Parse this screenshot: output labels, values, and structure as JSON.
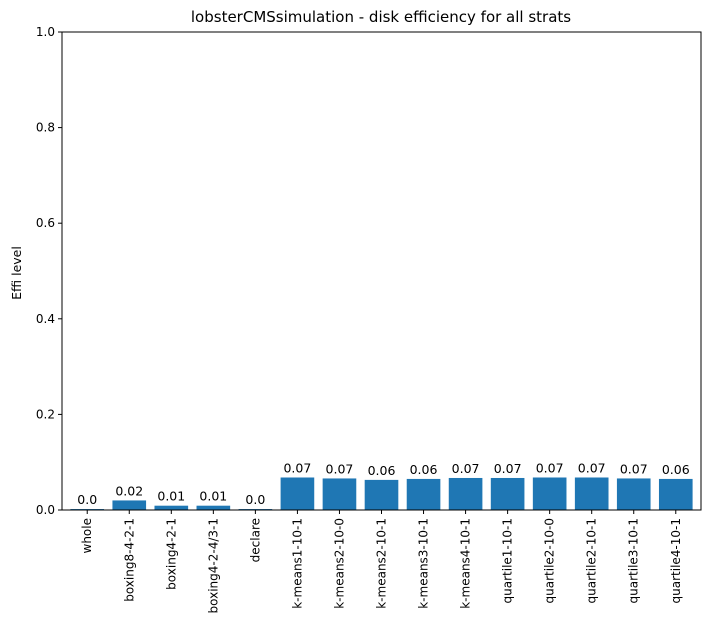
{
  "chart_data": {
    "type": "bar",
    "title": "lobsterCMSsimulation - disk efficiency for all strats",
    "xlabel": "",
    "ylabel": "Effi level",
    "ylim": [
      0,
      1.0
    ],
    "yticks": [
      "0.0",
      "0.2",
      "0.4",
      "0.6",
      "0.8",
      "1.0"
    ],
    "categories": [
      "whole",
      "boxing8-4-2-1",
      "boxing4-2-1",
      "boxing4-2-4/3-1",
      "declare",
      "k-means1-10-1",
      "k-means2-10-0",
      "k-means2-10-1",
      "k-means3-10-1",
      "k-means4-10-1",
      "quartile1-10-1",
      "quartile2-10-0",
      "quartile2-10-1",
      "quartile3-10-1",
      "quartile4-10-1"
    ],
    "values": [
      0.002,
      0.02,
      0.009,
      0.009,
      0.002,
      0.068,
      0.066,
      0.063,
      0.065,
      0.067,
      0.067,
      0.068,
      0.068,
      0.066,
      0.065
    ],
    "value_labels": [
      "0.0",
      "0.02",
      "0.01",
      "0.01",
      "0.0",
      "0.07",
      "0.07",
      "0.06",
      "0.06",
      "0.07",
      "0.07",
      "0.07",
      "0.07",
      "0.07",
      "0.06"
    ],
    "bar_color": "#1f77b4",
    "grid": false,
    "legend": "none"
  }
}
